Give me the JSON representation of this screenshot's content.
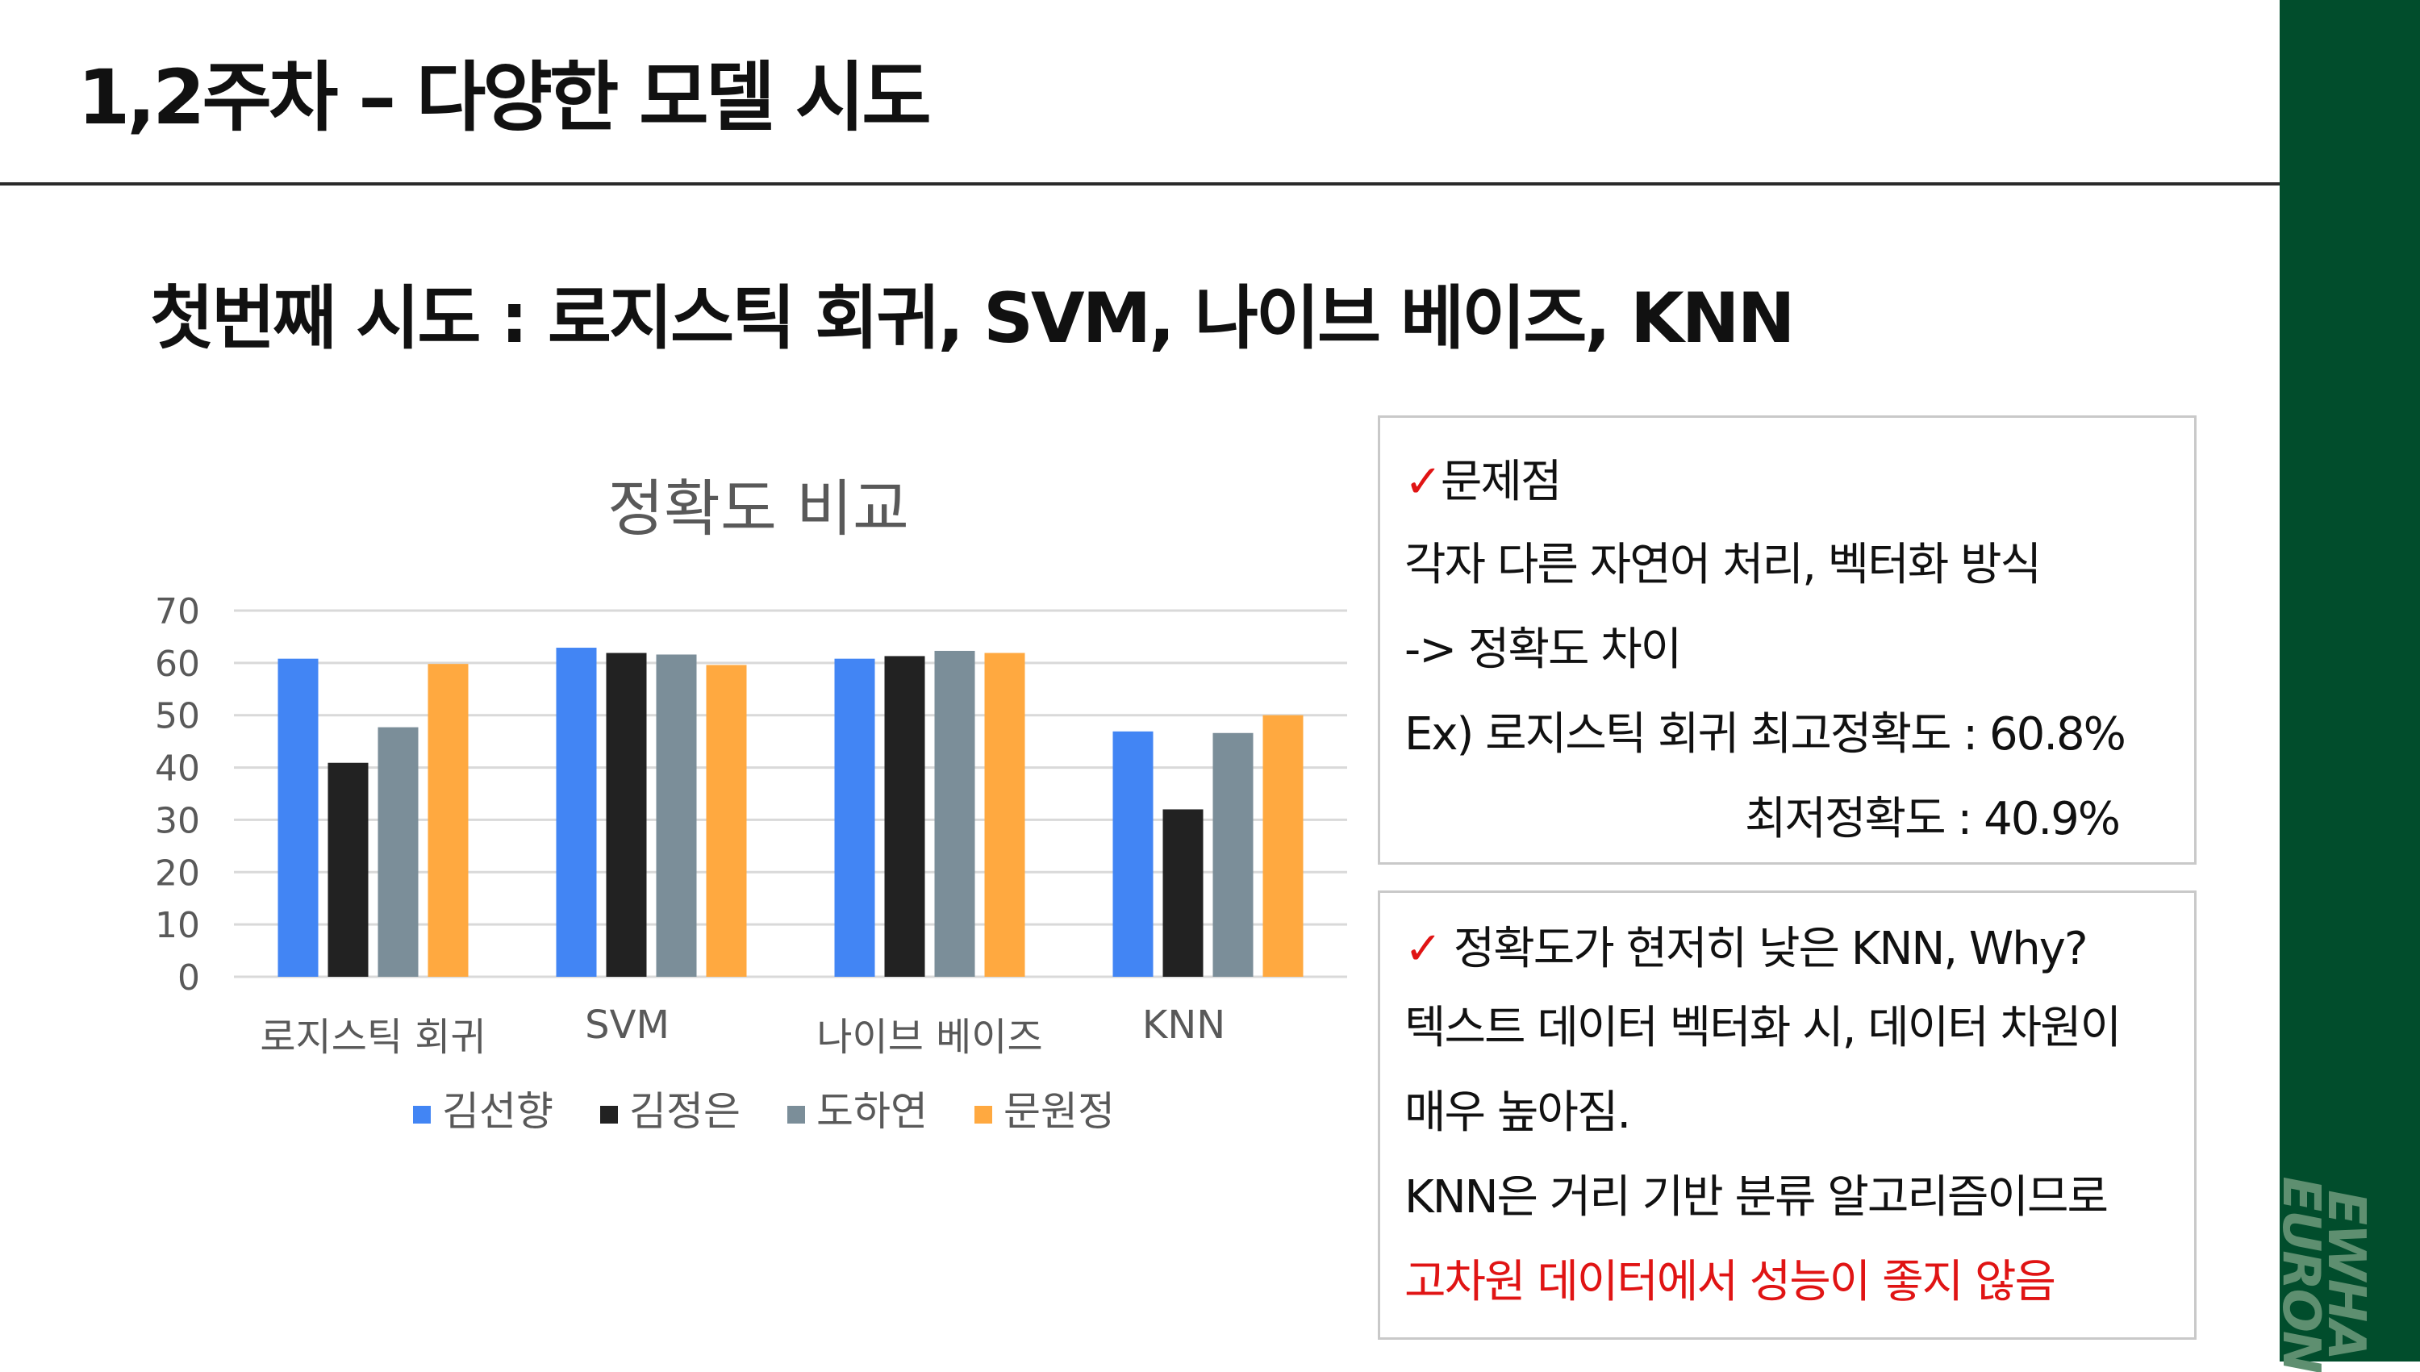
{
  "header": {
    "title": "1,2주차 – 다양한 모델 시도"
  },
  "subtitle": "첫번째 시도 : 로지스틱 회귀, SVM, 나이브 베이즈, KNN",
  "logo": {
    "text": "EWHA\nEURON"
  },
  "colors": {
    "brand_green": "#014d2c",
    "accent_red": "#e01414"
  },
  "chart_data": {
    "type": "bar",
    "title": "정확도 비교",
    "categories": [
      "로지스틱 회귀",
      "SVM",
      "나이브 베이즈",
      "KNN"
    ],
    "series": [
      {
        "name": "김선향",
        "color": "#4285f4",
        "values": [
          60.8,
          62.9,
          60.8,
          46.9
        ]
      },
      {
        "name": "김정은",
        "color": "#222222",
        "values": [
          40.9,
          61.9,
          61.3,
          32.0
        ]
      },
      {
        "name": "도하연",
        "color": "#7b8e99",
        "values": [
          47.7,
          61.6,
          62.3,
          46.6
        ]
      },
      {
        "name": "문원정",
        "color": "#ffa940",
        "values": [
          59.8,
          59.6,
          61.9,
          50.0
        ]
      }
    ],
    "ylim": [
      0,
      70
    ],
    "yticks": [
      0,
      10,
      20,
      30,
      40,
      50,
      60,
      70
    ],
    "grid": true,
    "legend_position": "bottom"
  },
  "box1": {
    "check": "✓",
    "heading": "문제점",
    "lines": [
      "각자 다른 자연어 처리, 벡터화 방식",
      "-> 정확도 차이",
      "Ex) 로지스틱 회귀 최고정확도  : 60.8%",
      "최저정확도 : 40.9%"
    ]
  },
  "box2": {
    "check": "✓",
    "heading": " 정확도가 현저히 낮은 KNN, Why?",
    "lines": [
      "텍스트 데이터 벡터화 시, 데이터 차원이",
      "매우 높아짐.",
      "KNN은 거리 기반 분류 알고리즘이므로",
      "고차원 데이터에서 성능이 좋지 않음"
    ]
  }
}
